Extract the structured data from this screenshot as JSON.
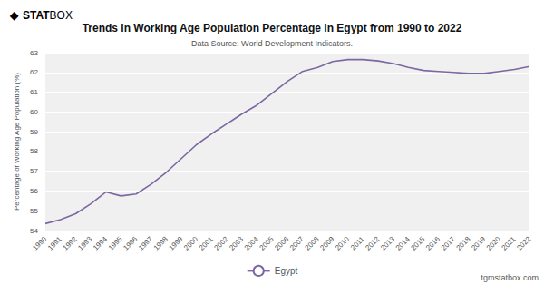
{
  "chart_data": {
    "type": "line",
    "title": "Trends in Working Age Population Percentage in Egypt from 1990 to 2022",
    "subtitle": "Data Source: World Development Indicators.",
    "ylabel": "Percentage of Working Age Population (%)",
    "annotations": [
      "◆",
      "STAT",
      "BOX",
      "tgmstatbox.com"
    ],
    "x": [
      1990,
      1991,
      1992,
      1993,
      1994,
      1995,
      1996,
      1997,
      1998,
      1999,
      2000,
      2001,
      2002,
      2003,
      2004,
      2005,
      2006,
      2007,
      2008,
      2009,
      2010,
      2011,
      2012,
      2013,
      2014,
      2015,
      2016,
      2017,
      2018,
      2019,
      2020,
      2021,
      2022
    ],
    "series": [
      {
        "name": "Egypt",
        "color": "#7b68a0",
        "values": [
          54.35,
          54.55,
          54.85,
          55.35,
          55.95,
          55.75,
          55.85,
          56.35,
          56.95,
          57.65,
          58.35,
          58.9,
          59.4,
          59.9,
          60.35,
          60.95,
          61.55,
          62.05,
          62.25,
          62.55,
          62.65,
          62.65,
          62.58,
          62.45,
          62.25,
          62.1,
          62.05,
          62.0,
          61.95,
          61.95,
          62.05,
          62.15,
          62.3
        ]
      }
    ],
    "xlim": [
      1990,
      2022
    ],
    "xticks": [
      1990,
      1991,
      1992,
      1993,
      1994,
      1995,
      1996,
      1997,
      1998,
      1999,
      2000,
      2001,
      2002,
      2003,
      2004,
      2005,
      2006,
      2007,
      2008,
      2009,
      2010,
      2011,
      2012,
      2013,
      2014,
      2015,
      2016,
      2017,
      2018,
      2019,
      2020,
      2021,
      2022
    ],
    "ylim": [
      54,
      63
    ],
    "yticks": [
      54,
      55,
      56,
      57,
      58,
      59,
      60,
      61,
      62,
      63
    ],
    "grid": true,
    "legend": "bottom"
  }
}
